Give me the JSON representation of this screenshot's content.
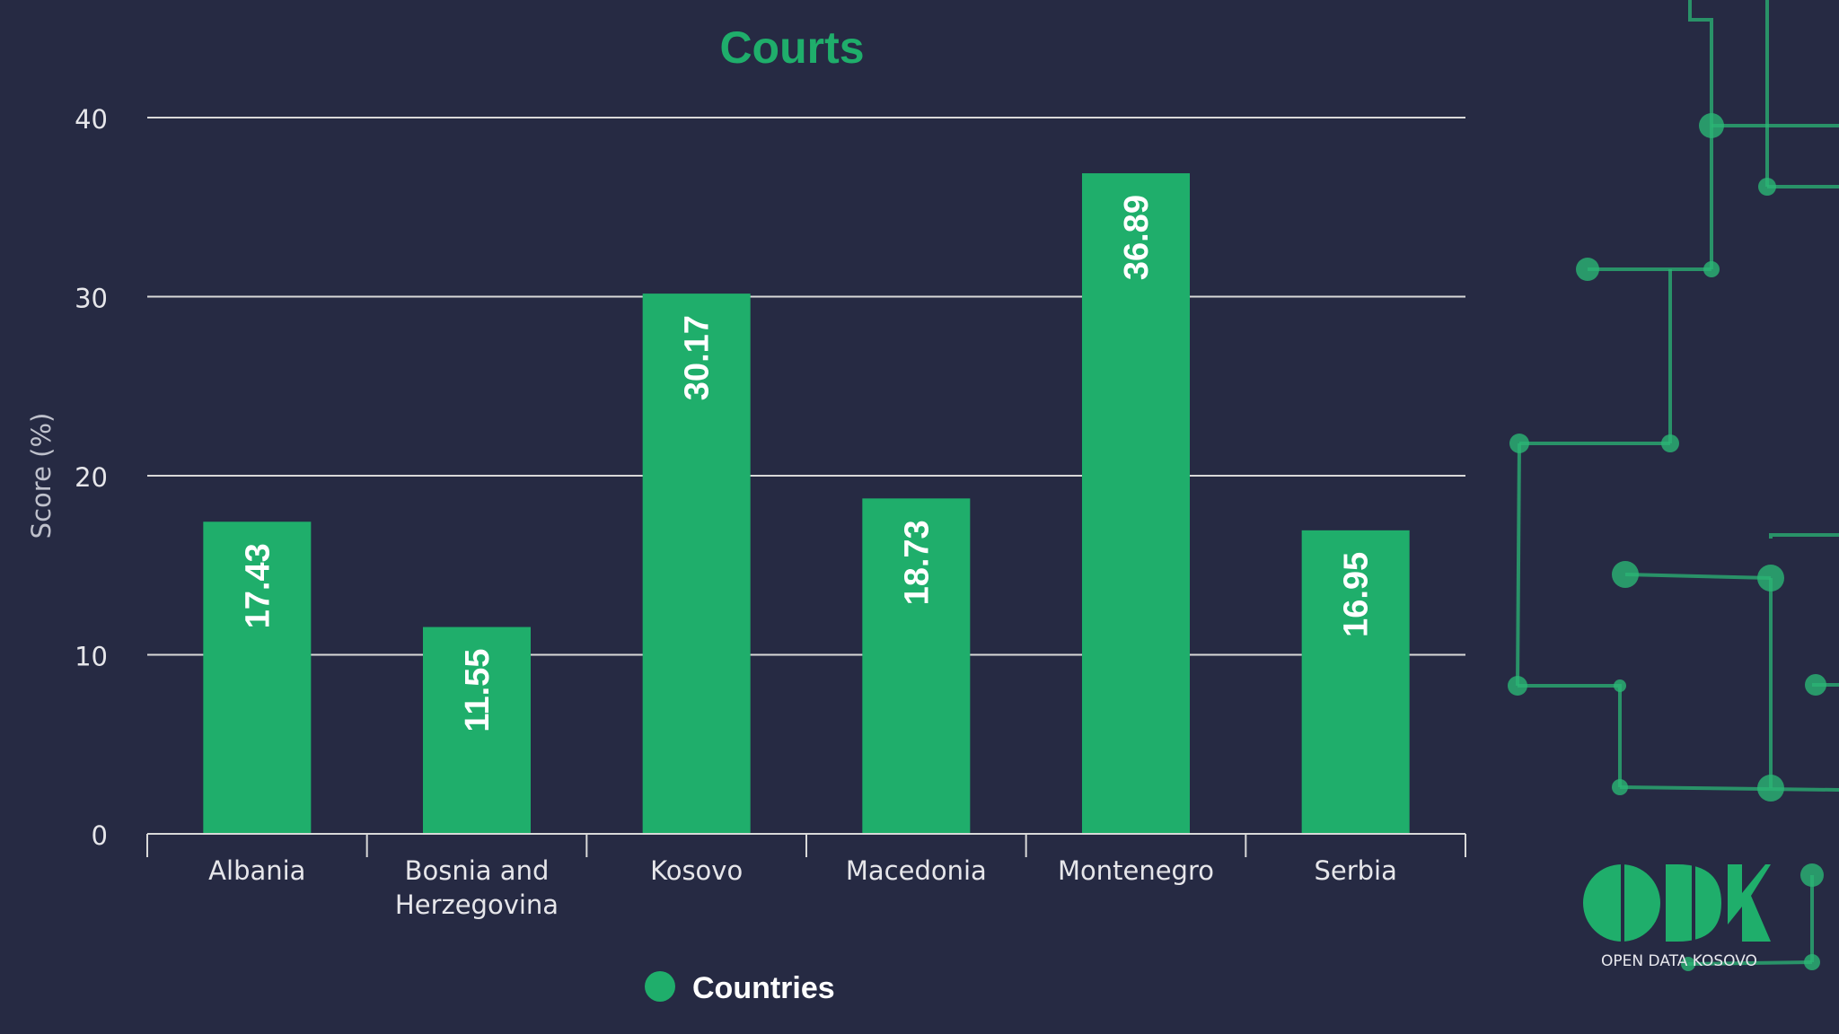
{
  "colors": {
    "background": "#262a43",
    "bar": "#1fae6b",
    "title": "#1fae6b",
    "gridline": "#d9d9d9",
    "axis_text": "#e6e6ea",
    "circuit": "#2bb574"
  },
  "logo": {
    "letters": "ODK",
    "tagline": "OPEN DATA KOSOVO"
  },
  "chart_data": {
    "type": "bar",
    "title": "Courts",
    "xlabel": "",
    "ylabel": "Score (%)",
    "ylim": [
      0,
      40
    ],
    "yticks": [
      0,
      10,
      20,
      30,
      40
    ],
    "categories": [
      "Albania",
      "Bosnia and Herzegovina",
      "Kosovo",
      "Macedonia",
      "Montenegro",
      "Serbia"
    ],
    "category_label_lines": [
      [
        "Albania"
      ],
      [
        "Bosnia and",
        "Herzegovina"
      ],
      [
        "Kosovo"
      ],
      [
        "Macedonia"
      ],
      [
        "Montenegro"
      ],
      [
        "Serbia"
      ]
    ],
    "series": [
      {
        "name": "Countries",
        "values": [
          17.43,
          11.55,
          30.17,
          18.73,
          36.89,
          16.95
        ]
      }
    ],
    "data_labels": [
      "17.43",
      "11.55",
      "30.17",
      "18.73",
      "36.89",
      "16.95"
    ],
    "grid": true,
    "legend": "bottom"
  }
}
